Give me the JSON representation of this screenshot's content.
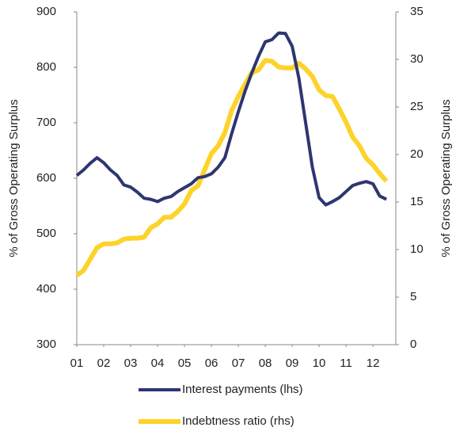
{
  "chart_data": {
    "type": "line",
    "y_label": "% of Gross Operating Surplus",
    "y2_label": "% of Gross Operating Surplus",
    "x": [
      2001,
      2001.25,
      2001.5,
      2001.75,
      2002,
      2002.25,
      2002.5,
      2002.75,
      2003,
      2003.25,
      2003.5,
      2003.75,
      2004,
      2004.25,
      2004.5,
      2004.75,
      2005,
      2005.25,
      2005.5,
      2005.75,
      2006,
      2006.25,
      2006.5,
      2006.75,
      2007,
      2007.25,
      2007.5,
      2007.75,
      2008,
      2008.25,
      2008.5,
      2008.75,
      2009,
      2009.25,
      2009.5,
      2009.75,
      2010,
      2010.25,
      2010.5,
      2010.75,
      2011,
      2011.25,
      2011.5,
      2011.75,
      2012,
      2012.25,
      2012.5
    ],
    "xlim": [
      2001,
      2012.85
    ],
    "xticks": [
      {
        "value": 2001,
        "label": "01"
      },
      {
        "value": 2002,
        "label": "02"
      },
      {
        "value": 2003,
        "label": "03"
      },
      {
        "value": 2004,
        "label": "04"
      },
      {
        "value": 2005,
        "label": "05"
      },
      {
        "value": 2006,
        "label": "06"
      },
      {
        "value": 2007,
        "label": "07"
      },
      {
        "value": 2008,
        "label": "08"
      },
      {
        "value": 2009,
        "label": "09"
      },
      {
        "value": 2010,
        "label": "10"
      },
      {
        "value": 2011,
        "label": "11"
      },
      {
        "value": 2012,
        "label": "12"
      }
    ],
    "ylim": [
      300,
      900
    ],
    "yticks": [
      300,
      400,
      500,
      600,
      700,
      800,
      900
    ],
    "y2lim": [
      0,
      35
    ],
    "y2ticks": [
      0,
      5,
      10,
      15,
      20,
      25,
      30,
      35
    ],
    "legend": "bottom",
    "series": [
      {
        "name": "Interest payments (lhs)",
        "color": "#2e3670",
        "axis": "y",
        "values": [
          605,
          615,
          627,
          637,
          628,
          615,
          605,
          588,
          584,
          575,
          564,
          562,
          558,
          564,
          567,
          576,
          583,
          590,
          601,
          603,
          608,
          620,
          637,
          680,
          720,
          757,
          790,
          820,
          846,
          850,
          862,
          861,
          838,
          780,
          700,
          620,
          565,
          552,
          558,
          565,
          576,
          587,
          591,
          594,
          590,
          568,
          562
        ]
      },
      {
        "name": "Indebtness ratio (rhs)",
        "color": "#fdd32a",
        "axis": "y2",
        "values": [
          7.3,
          7.8,
          9,
          10.2,
          10.6,
          10.6,
          10.7,
          11.1,
          11.2,
          11.2,
          11.3,
          12.3,
          12.7,
          13.4,
          13.4,
          14,
          14.8,
          16.2,
          16.7,
          18.4,
          20.1,
          20.9,
          22.3,
          24.6,
          26.1,
          27.4,
          28.6,
          28.9,
          29.9,
          29.8,
          29.2,
          29.1,
          29.1,
          29.6,
          29,
          28.2,
          26.8,
          26.2,
          26.1,
          24.8,
          23.4,
          21.8,
          20.9,
          19.6,
          18.9,
          18,
          17.2
        ]
      }
    ]
  }
}
